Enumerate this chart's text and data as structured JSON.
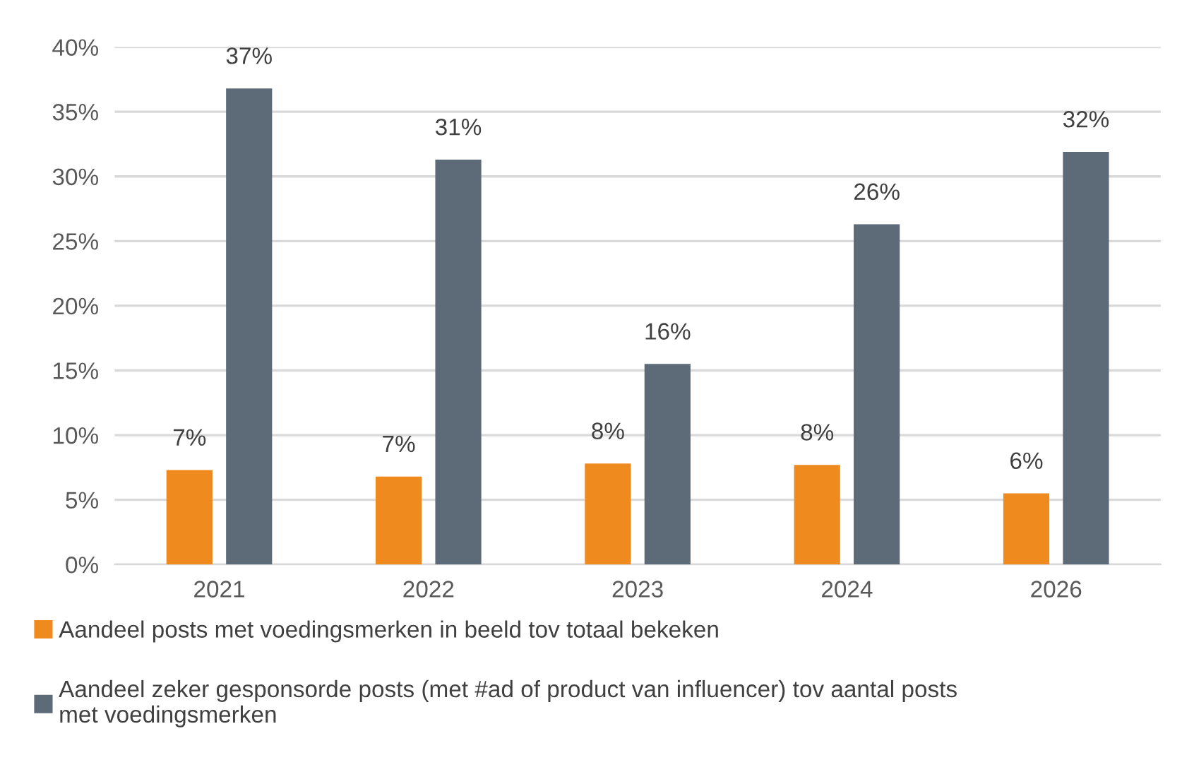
{
  "chart_data": {
    "type": "bar",
    "categories": [
      "2021",
      "2022",
      "2023",
      "2024",
      "2026"
    ],
    "series": [
      {
        "name": "Aandeel posts met voedingsmerken in beeld tov totaal bekeken",
        "color": "#ef8a1f",
        "values": [
          7.3,
          6.8,
          7.8,
          7.7,
          5.5
        ],
        "value_labels": [
          "7%",
          "7%",
          "8%",
          "8%",
          "6%"
        ]
      },
      {
        "name": "Aandeel zeker gesponsorde posts (met #ad of product van influencer) tov aantal posts\nmet voedingsmerken",
        "color": "#5d6b78",
        "values": [
          36.8,
          31.3,
          15.5,
          26.3,
          31.9
        ],
        "value_labels": [
          "37%",
          "31%",
          "16%",
          "26%",
          "32%"
        ]
      }
    ],
    "ylim": [
      0,
      40
    ],
    "yticks": [
      {
        "value": 0,
        "label": "0%"
      },
      {
        "value": 5,
        "label": "5%"
      },
      {
        "value": 10,
        "label": "10%"
      },
      {
        "value": 15,
        "label": "15%"
      },
      {
        "value": 20,
        "label": "20%"
      },
      {
        "value": 25,
        "label": "25%"
      },
      {
        "value": 30,
        "label": "30%"
      },
      {
        "value": 35,
        "label": "35%"
      },
      {
        "value": 40,
        "label": "40%"
      }
    ],
    "grid": "y",
    "legend": "bottom"
  }
}
